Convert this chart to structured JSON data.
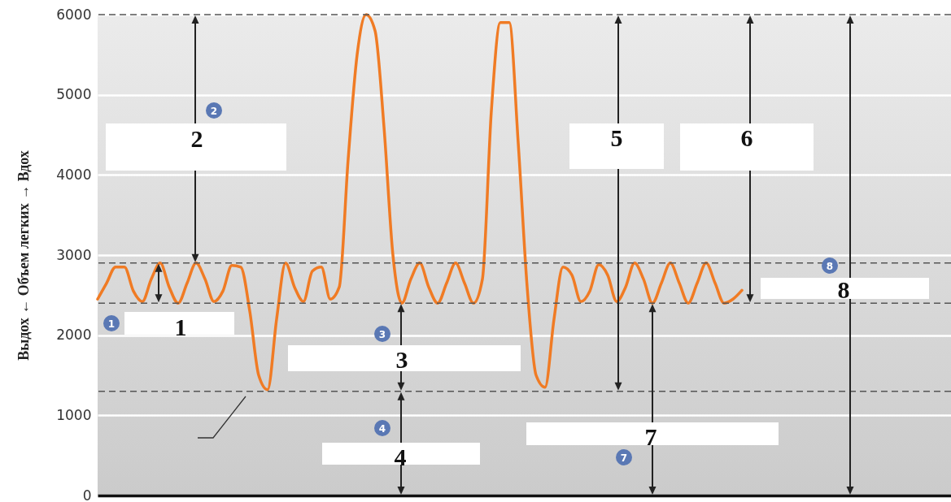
{
  "chart_data": {
    "type": "line",
    "ylabel": "Выдох ← Объем легких → Вдох",
    "categories": [
      null,
      null,
      null,
      null,
      null,
      null,
      null,
      null,
      null,
      null,
      null,
      null,
      null,
      null,
      null,
      null,
      null,
      null,
      null,
      null,
      null,
      null,
      null,
      null,
      null,
      null,
      null,
      null,
      null,
      null,
      null,
      null,
      null,
      null,
      null,
      null,
      null,
      null,
      null,
      null,
      null,
      null,
      null,
      null,
      null,
      null,
      null,
      null,
      null,
      null,
      null,
      null,
      null,
      null,
      null,
      null,
      null,
      null,
      null,
      null,
      null,
      null,
      null,
      null,
      null,
      null,
      null,
      null,
      null,
      null,
      null,
      null,
      null
    ],
    "series": [
      {
        "color": "#f07b24",
        "values": [
          2450,
          2650,
          2850,
          2850,
          2550,
          2420,
          2700,
          2900,
          2600,
          2400,
          2650,
          2900,
          2700,
          2420,
          2550,
          2870,
          2850,
          2300,
          1500,
          1320,
          2200,
          2900,
          2600,
          2420,
          2800,
          2850,
          2450,
          2600,
          4200,
          5500,
          6000,
          5800,
          4600,
          3000,
          2400,
          2700,
          2900,
          2600,
          2400,
          2650,
          2900,
          2650,
          2400,
          2700,
          4800,
          5900,
          5900,
          4400,
          2600,
          1500,
          1350,
          2200,
          2850,
          2750,
          2420,
          2550,
          2880,
          2750,
          2420,
          2600,
          2900,
          2700,
          2400,
          2650,
          2900,
          2650,
          2400,
          2650,
          2900,
          2650,
          2400,
          2450,
          2560
        ]
      }
    ],
    "ylim": [
      0,
      6000
    ],
    "yticks": [
      0,
      1000,
      2000,
      3000,
      4000,
      5000,
      6000
    ],
    "grid": "y",
    "tick_labels": "y",
    "line_style": "solid",
    "ref_lines": [
      {
        "axis": "y",
        "value": 6000,
        "line_style": "dashed",
        "color": "#555555"
      },
      {
        "axis": "y",
        "value": 2900,
        "line_style": "dashed",
        "color": "#555555"
      },
      {
        "axis": "y",
        "value": 2400,
        "line_style": "dashed",
        "color": "#555555"
      },
      {
        "axis": "y",
        "value": 1300,
        "line_style": "dashed",
        "color": "#555555"
      }
    ],
    "annotations": [
      "1",
      "2",
      "3",
      "4",
      "5",
      "6",
      "7",
      "8",
      "1",
      "2",
      "3",
      "4",
      "7",
      "8"
    ]
  }
}
